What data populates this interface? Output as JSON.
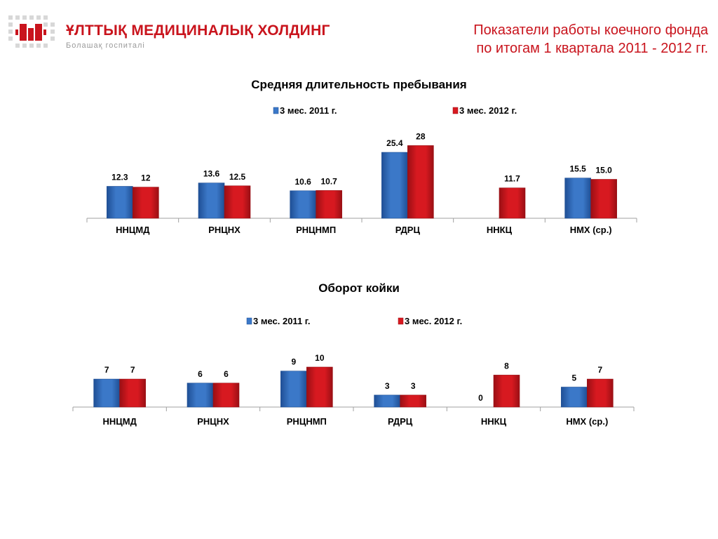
{
  "header": {
    "logo_name": "ҰЛТТЫҚ МЕДИЦИНАЛЫҚ ХОЛДИНГ",
    "logo_tagline": "Болашақ госпиталі",
    "title_line1": "Показатели работы коечного фонда",
    "title_line2": "по итогам 1 квартала 2011 - 2012 гг."
  },
  "colors": {
    "accent": "#c9141d",
    "series_2011": "#3b78c8",
    "series_2012": "#d71920"
  },
  "chart_data": [
    {
      "type": "bar",
      "title": "Средняя длительность пребывания",
      "categories": [
        "ННЦМД",
        "РНЦНХ",
        "РНЦНМП",
        "РДРЦ",
        "ННКЦ",
        "НМХ (ср.)"
      ],
      "series": [
        {
          "name": "3 мес. 2011 г.",
          "values": [
            12.3,
            13.6,
            10.6,
            25.4,
            null,
            15.5
          ],
          "labels": [
            "12.3",
            "13.6",
            "10.6",
            "25.4",
            "",
            "15.5"
          ]
        },
        {
          "name": "3 мес. 2012 г.",
          "values": [
            12,
            12.5,
            10.7,
            28,
            11.7,
            15.0
          ],
          "labels": [
            "12",
            "12.5",
            "10.7",
            "28",
            "11.7",
            "15.0"
          ]
        }
      ],
      "ylim": [
        0,
        30
      ],
      "grid": false,
      "legend": "top"
    },
    {
      "type": "bar",
      "title": "Оборот койки",
      "categories": [
        "ННЦМД",
        "РНЦНХ",
        "РНЦНМП",
        "РДРЦ",
        "ННКЦ",
        "НМХ (ср.)"
      ],
      "series": [
        {
          "name": "3 мес. 2011 г.",
          "values": [
            7,
            6,
            9,
            3,
            0,
            5
          ],
          "labels": [
            "7",
            "6",
            "9",
            "3",
            "0",
            "5"
          ]
        },
        {
          "name": "3 мес. 2012 г.",
          "values": [
            7,
            6,
            10,
            3,
            8,
            7
          ],
          "labels": [
            "7",
            "6",
            "10",
            "3",
            "8",
            "7"
          ]
        }
      ],
      "ylim": [
        0,
        13
      ],
      "grid": false,
      "legend": "top"
    }
  ]
}
